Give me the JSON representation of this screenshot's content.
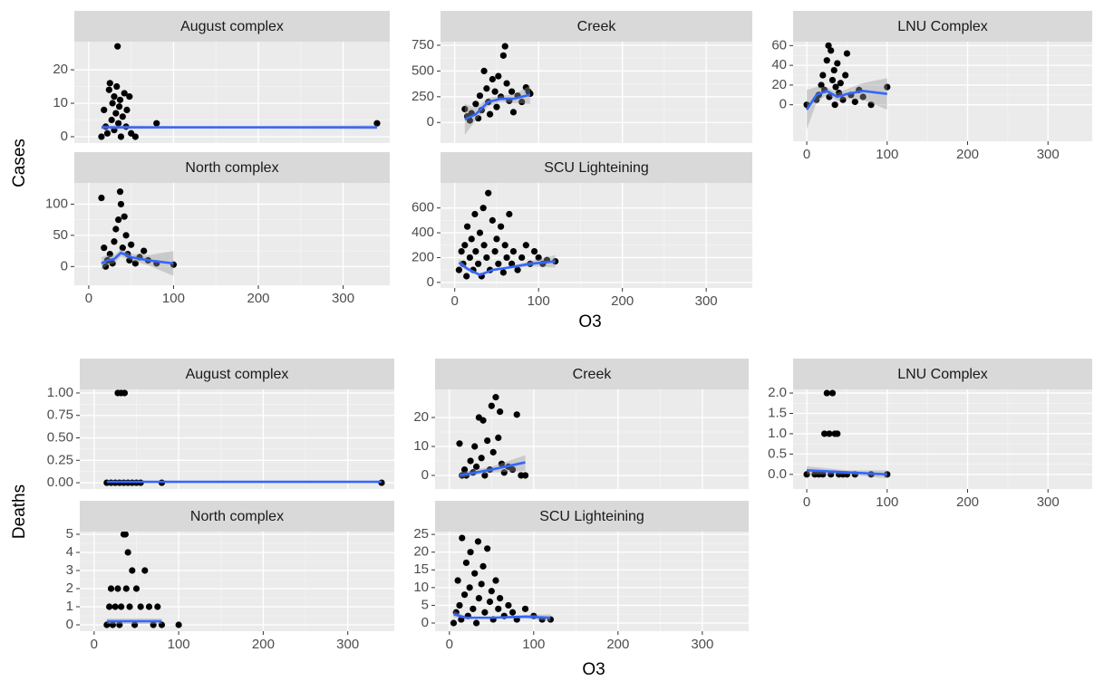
{
  "chart_data": [
    {
      "type": "scatter",
      "title": "August complex",
      "ylabel": "Cases",
      "x": [
        15,
        18,
        20,
        22,
        24,
        25,
        27,
        28,
        30,
        30,
        32,
        33,
        34,
        35,
        36,
        37,
        38,
        40,
        42,
        44,
        45,
        48,
        50,
        55,
        80,
        340
      ],
      "values": [
        0,
        8,
        3,
        1,
        14,
        16,
        5,
        10,
        12,
        2,
        7,
        15,
        27,
        4,
        9,
        11,
        0,
        6,
        13,
        3,
        8,
        12,
        1,
        0,
        4,
        4
      ],
      "smooth": {
        "x": [
          15,
          100,
          200,
          340
        ],
        "values": [
          2.8,
          2.8,
          2.8,
          2.8
        ],
        "lower": [
          2.2,
          2.4,
          2.4,
          2.2
        ],
        "upper": [
          3.4,
          3.2,
          3.2,
          3.4
        ]
      },
      "xlim": [
        -17,
        355
      ],
      "xticks": [
        0,
        100,
        200,
        300
      ],
      "ylim": [
        -1.9,
        28.4
      ],
      "yticks": [
        0,
        10,
        20
      ]
    },
    {
      "type": "scatter",
      "title": "Creek",
      "x": [
        12,
        15,
        18,
        20,
        25,
        28,
        30,
        32,
        35,
        38,
        40,
        42,
        45,
        48,
        50,
        52,
        55,
        58,
        60,
        62,
        65,
        68,
        70,
        75,
        80,
        85,
        88,
        90
      ],
      "values": [
        130,
        60,
        20,
        90,
        180,
        40,
        260,
        120,
        500,
        330,
        200,
        80,
        420,
        300,
        150,
        450,
        250,
        650,
        740,
        380,
        210,
        300,
        100,
        260,
        200,
        340,
        300,
        280
      ],
      "smooth": {
        "x": [
          12,
          25,
          40,
          55,
          70,
          90
        ],
        "values": [
          30,
          80,
          200,
          230,
          230,
          270
        ],
        "lower": [
          -120,
          20,
          160,
          200,
          190,
          180
        ],
        "upper": [
          180,
          140,
          240,
          260,
          270,
          360
        ]
      },
      "xlim": [
        -17,
        355
      ],
      "xticks": [
        0,
        100,
        200,
        300
      ],
      "ylim": [
        -200,
        785
      ],
      "yticks": [
        0,
        250,
        500,
        750
      ]
    },
    {
      "type": "scatter",
      "title": "LNU Complex",
      "x": [
        0,
        12,
        15,
        18,
        20,
        22,
        25,
        27,
        28,
        30,
        32,
        34,
        35,
        36,
        38,
        40,
        42,
        45,
        48,
        50,
        55,
        60,
        65,
        70,
        80,
        100
      ],
      "values": [
        0,
        5,
        10,
        20,
        30,
        15,
        45,
        60,
        8,
        55,
        25,
        35,
        0,
        18,
        42,
        12,
        22,
        5,
        30,
        52,
        10,
        3,
        15,
        8,
        0,
        18
      ],
      "smooth": {
        "x": [
          0,
          12,
          25,
          38,
          50,
          70,
          100
        ],
        "values": [
          -5,
          10,
          14,
          8,
          11,
          14,
          11
        ],
        "lower": [
          -25,
          2,
          10,
          4,
          6,
          5,
          -5
        ],
        "upper": [
          15,
          18,
          18,
          12,
          16,
          22,
          27
        ]
      },
      "xlim": [
        -17,
        355
      ],
      "xticks": [
        0,
        100,
        200,
        300
      ],
      "ylim": [
        -37,
        64
      ],
      "yticks": [
        0,
        20,
        40,
        60
      ]
    },
    {
      "type": "scatter",
      "title": "North complex",
      "x": [
        15,
        18,
        20,
        22,
        25,
        28,
        30,
        32,
        35,
        37,
        38,
        40,
        42,
        44,
        46,
        48,
        50,
        55,
        60,
        65,
        70,
        80,
        100
      ],
      "values": [
        110,
        30,
        0,
        10,
        20,
        5,
        40,
        60,
        75,
        120,
        100,
        30,
        80,
        50,
        20,
        10,
        35,
        5,
        15,
        25,
        10,
        5,
        3
      ],
      "smooth": {
        "x": [
          15,
          22,
          30,
          38,
          50,
          70,
          100
        ],
        "values": [
          5,
          10,
          12,
          22,
          15,
          10,
          5
        ],
        "lower": [
          -5,
          2,
          5,
          16,
          10,
          2,
          -15
        ],
        "upper": [
          15,
          18,
          18,
          28,
          20,
          18,
          25
        ]
      },
      "xlim": [
        -17,
        355
      ],
      "xticks": [
        0,
        100,
        200,
        300
      ],
      "ylim": [
        -30,
        134
      ],
      "yticks": [
        0,
        50,
        100
      ]
    },
    {
      "type": "scatter",
      "title": "SCU Lighteining",
      "xlabel": "O3",
      "x": [
        5,
        8,
        10,
        12,
        14,
        15,
        18,
        20,
        22,
        24,
        25,
        28,
        30,
        32,
        34,
        35,
        38,
        40,
        42,
        45,
        48,
        50,
        52,
        55,
        58,
        60,
        62,
        65,
        68,
        70,
        75,
        80,
        85,
        90,
        95,
        100,
        105,
        110,
        120
      ],
      "values": [
        100,
        250,
        150,
        300,
        50,
        450,
        200,
        350,
        100,
        550,
        250,
        150,
        400,
        50,
        600,
        300,
        200,
        720,
        100,
        500,
        250,
        350,
        150,
        450,
        80,
        300,
        200,
        550,
        150,
        250,
        100,
        200,
        300,
        150,
        250,
        200,
        150,
        180,
        170
      ],
      "smooth": {
        "x": [
          5,
          15,
          30,
          45,
          65,
          90,
          120
        ],
        "values": [
          160,
          110,
          60,
          100,
          120,
          150,
          170
        ],
        "lower": [
          130,
          95,
          50,
          90,
          110,
          130,
          120
        ],
        "upper": [
          190,
          125,
          70,
          110,
          130,
          170,
          220
        ]
      },
      "xlim": [
        -17,
        355
      ],
      "xticks": [
        0,
        100,
        200,
        300
      ],
      "ylim": [
        -45,
        802
      ],
      "yticks": [
        0,
        200,
        400,
        600
      ]
    },
    {
      "type": "scatter",
      "title": "August complex",
      "ylabel": "Deaths",
      "x": [
        15,
        20,
        25,
        28,
        30,
        32,
        35,
        36,
        40,
        45,
        50,
        55,
        80,
        340
      ],
      "values": [
        0,
        0,
        0,
        1,
        0,
        1,
        0,
        1,
        0,
        0,
        0,
        0,
        0,
        0
      ],
      "smooth": {
        "x": [
          15,
          100,
          200,
          340
        ],
        "values": [
          0.01,
          0.01,
          0.01,
          0.01
        ],
        "lower": [
          0,
          0.005,
          0.005,
          0
        ],
        "upper": [
          0.02,
          0.015,
          0.015,
          0.02
        ]
      },
      "xlim": [
        -17,
        355
      ],
      "xticks": [
        0,
        100,
        200,
        300
      ],
      "ylim": [
        -0.07,
        1.04
      ],
      "yticks": [
        {
          "value": 0,
          "label": "0.00"
        },
        {
          "value": 0.25,
          "label": "0.25"
        },
        {
          "value": 0.5,
          "label": "0.50"
        },
        {
          "value": 0.75,
          "label": "0.75"
        },
        {
          "value": 1,
          "label": "1.00"
        }
      ]
    },
    {
      "type": "scatter",
      "title": "Creek",
      "x": [
        12,
        15,
        18,
        20,
        25,
        28,
        30,
        32,
        35,
        38,
        40,
        42,
        45,
        48,
        50,
        52,
        55,
        58,
        60,
        62,
        65,
        70,
        75,
        80,
        85,
        90
      ],
      "values": [
        11,
        0,
        2,
        0,
        5,
        1,
        10,
        3,
        20,
        6,
        19,
        0,
        12,
        2,
        24,
        8,
        27,
        13,
        22,
        4,
        1,
        3,
        2,
        21,
        0,
        0
      ],
      "smooth": {
        "x": [
          12,
          50,
          90
        ],
        "values": [
          0,
          2,
          4.5
        ],
        "lower": [
          -1,
          1,
          1.5
        ],
        "upper": [
          1,
          3,
          7
        ]
      },
      "xlim": [
        -17,
        355
      ],
      "xticks": [
        0,
        100,
        200,
        300
      ],
      "ylim": [
        -4.7,
        29.7
      ],
      "yticks": [
        0,
        10,
        20
      ]
    },
    {
      "type": "scatter",
      "title": "LNU Complex",
      "x": [
        0,
        10,
        15,
        20,
        22,
        25,
        28,
        30,
        32,
        35,
        38,
        40,
        45,
        50,
        60,
        80,
        100
      ],
      "values": [
        0,
        0,
        0,
        0,
        1,
        2,
        1,
        0,
        2,
        1,
        1,
        0,
        0,
        0,
        0,
        0,
        0
      ],
      "smooth": {
        "x": [
          0,
          50,
          100
        ],
        "values": [
          0.1,
          0.05,
          0
        ],
        "lower": [
          0,
          0,
          -0.1
        ],
        "upper": [
          0.2,
          0.1,
          0.1
        ]
      },
      "xlim": [
        -17,
        355
      ],
      "xticks": [
        0,
        100,
        200,
        300
      ],
      "ylim": [
        -0.36,
        2.09
      ],
      "yticks": [
        {
          "value": 0,
          "label": "0.0"
        },
        0.5,
        {
          "value": 1,
          "label": "1.0"
        },
        1.5,
        {
          "value": 2,
          "label": "2.0"
        }
      ]
    },
    {
      "type": "scatter",
      "title": "North complex",
      "x": [
        15,
        18,
        20,
        22,
        25,
        28,
        30,
        32,
        35,
        37,
        38,
        40,
        42,
        45,
        48,
        50,
        55,
        60,
        65,
        70,
        75,
        80,
        100
      ],
      "values": [
        0,
        1,
        2,
        0,
        1,
        2,
        0,
        1,
        5,
        5,
        2,
        4,
        1,
        3,
        0,
        2,
        1,
        3,
        1,
        0,
        1,
        0,
        0
      ],
      "smooth": {
        "x": [
          15,
          80
        ],
        "values": [
          0.2,
          0.2
        ],
        "lower": [
          0.05,
          0.05
        ],
        "upper": [
          0.35,
          0.35
        ]
      },
      "xlim": [
        -17,
        355
      ],
      "xticks": [
        0,
        100,
        200,
        300
      ],
      "ylim": [
        -0.35,
        5.15
      ],
      "yticks": [
        0,
        1,
        2,
        3,
        4,
        5
      ]
    },
    {
      "type": "scatter",
      "title": "SCU Lighteining",
      "xlabel": "O3",
      "x": [
        5,
        8,
        10,
        12,
        14,
        15,
        18,
        20,
        22,
        24,
        25,
        28,
        30,
        32,
        34,
        35,
        38,
        40,
        42,
        45,
        48,
        50,
        52,
        55,
        58,
        60,
        65,
        70,
        75,
        80,
        90,
        100,
        110,
        120
      ],
      "values": [
        0,
        3,
        12,
        5,
        1,
        24,
        8,
        17,
        2,
        10,
        20,
        4,
        14,
        0,
        23,
        7,
        11,
        16,
        3,
        21,
        6,
        9,
        1,
        12,
        4,
        7,
        2,
        5,
        3,
        1,
        4,
        2,
        1,
        1
      ],
      "smooth": {
        "x": [
          5,
          20,
          50,
          90,
          120
        ],
        "values": [
          2.5,
          1.5,
          1.5,
          1.8,
          1.5
        ],
        "lower": [
          1.5,
          1.2,
          1.3,
          1.3,
          0.5
        ],
        "upper": [
          3.5,
          1.8,
          1.7,
          2.3,
          2.5
        ]
      },
      "xlim": [
        -17,
        355
      ],
      "xticks": [
        0,
        100,
        200,
        300
      ],
      "ylim": [
        -2.3,
        25.8
      ],
      "yticks": [
        0,
        5,
        10,
        15,
        20,
        25
      ]
    }
  ]
}
